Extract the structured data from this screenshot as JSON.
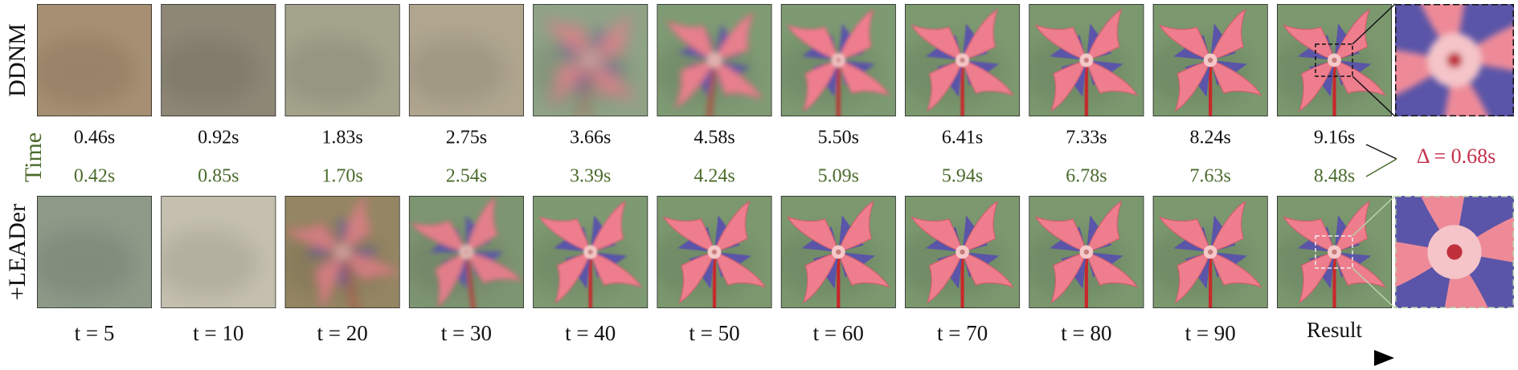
{
  "row_labels": {
    "top": "DDNM",
    "time": "Time",
    "bottom": "+LEADer"
  },
  "ddnm_times": [
    "0.46s",
    "0.92s",
    "1.83s",
    "2.75s",
    "3.66s",
    "4.58s",
    "5.50s",
    "6.41s",
    "7.33s",
    "8.24s",
    "9.16s"
  ],
  "leader_times": [
    "0.42s",
    "0.85s",
    "1.70s",
    "2.54s",
    "3.39s",
    "4.24s",
    "5.09s",
    "5.94s",
    "6.78s",
    "7.63s",
    "8.48s"
  ],
  "steps": [
    "t = 5",
    "t = 10",
    "t = 20",
    "t = 30",
    "t = 40",
    "t = 50",
    "t = 60",
    "t = 70",
    "t = 80",
    "t = 90",
    "Result"
  ],
  "delta": "Δ = 0.68s"
}
